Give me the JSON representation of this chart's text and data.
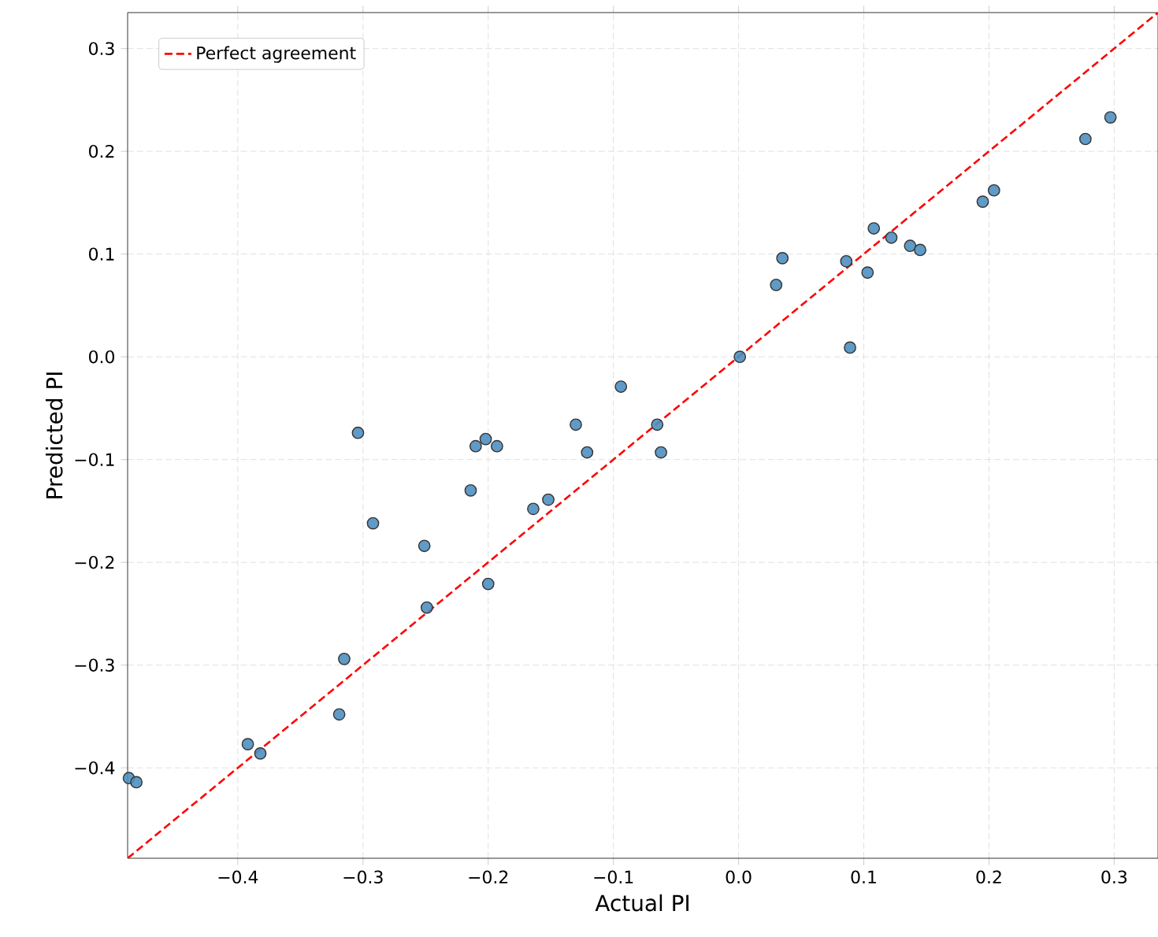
{
  "chart_data": {
    "type": "scatter",
    "xlabel": "Actual PI",
    "ylabel": "Predicted PI",
    "xlim": [
      -0.488,
      0.335
    ],
    "ylim": [
      -0.488,
      0.335
    ],
    "xticks": [
      {
        "value": -0.4,
        "label": "−0.4"
      },
      {
        "value": -0.3,
        "label": "−0.3"
      },
      {
        "value": -0.2,
        "label": "−0.2"
      },
      {
        "value": -0.1,
        "label": "−0.1"
      },
      {
        "value": 0.0,
        "label": "0.0"
      },
      {
        "value": 0.1,
        "label": "0.1"
      },
      {
        "value": 0.2,
        "label": "0.2"
      },
      {
        "value": 0.3,
        "label": "0.3"
      }
    ],
    "yticks": [
      {
        "value": -0.4,
        "label": "−0.4"
      },
      {
        "value": -0.3,
        "label": "−0.3"
      },
      {
        "value": -0.2,
        "label": "−0.2"
      },
      {
        "value": -0.1,
        "label": "−0.1"
      },
      {
        "value": 0.0,
        "label": "0.0"
      },
      {
        "value": 0.1,
        "label": "0.1"
      },
      {
        "value": 0.2,
        "label": "0.2"
      },
      {
        "value": 0.3,
        "label": "0.3"
      }
    ],
    "grid": true,
    "legend": "top left",
    "series": [
      {
        "marker": "circle",
        "color": "#4f8fc0",
        "x": [
          -0.487,
          -0.481,
          -0.392,
          -0.382,
          -0.319,
          -0.315,
          -0.304,
          -0.292,
          -0.251,
          -0.249,
          -0.214,
          -0.21,
          -0.202,
          -0.2,
          -0.193,
          -0.164,
          -0.152,
          -0.13,
          -0.121,
          -0.094,
          -0.065,
          -0.062,
          0.001,
          0.03,
          0.035,
          0.086,
          0.089,
          0.103,
          0.108,
          0.122,
          0.137,
          0.145,
          0.195,
          0.204,
          0.277,
          0.297
        ],
        "values": [
          -0.41,
          -0.414,
          -0.377,
          -0.386,
          -0.348,
          -0.294,
          -0.074,
          -0.162,
          -0.184,
          -0.244,
          -0.13,
          -0.087,
          -0.08,
          -0.221,
          -0.087,
          -0.148,
          -0.139,
          -0.066,
          -0.093,
          -0.029,
          -0.066,
          -0.093,
          0.0,
          0.07,
          0.096,
          0.093,
          0.009,
          0.082,
          0.125,
          0.116,
          0.108,
          0.104,
          0.151,
          0.162,
          0.212,
          0.233
        ]
      },
      {
        "type": "line",
        "name": "Perfect agreement",
        "color": "#ff0000",
        "line_style": "dashed",
        "marker": "none",
        "x": [
          -0.488,
          0.335
        ],
        "values": [
          -0.488,
          0.335
        ]
      }
    ]
  }
}
